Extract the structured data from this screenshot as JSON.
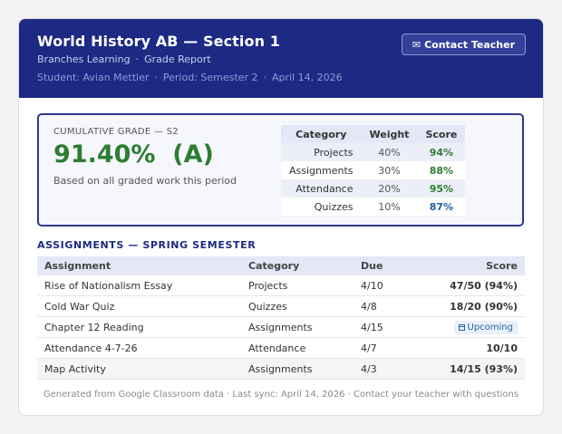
{
  "header": {
    "title": "World History AB — Section 1",
    "school": "Branches Learning",
    "report": "Grade Report",
    "student": "Student: Avian Mettler",
    "period": "Period: Semester 2",
    "date": "April 14, 2026",
    "contact_icon": "envelope-icon",
    "contact_label": "Contact Teacher"
  },
  "cumulative": {
    "label": "CUMULATIVE GRADE — S2",
    "value": "91.40%  (A)",
    "note": "Based on all graded work this period"
  },
  "weights": {
    "headers": [
      "Category",
      "Weight",
      "Score"
    ],
    "rows": [
      {
        "category": "Projects",
        "weight": "40%",
        "score": "94%",
        "color": "#2e7d32"
      },
      {
        "category": "Assignments",
        "weight": "30%",
        "score": "88%",
        "color": "#2e7d32"
      },
      {
        "category": "Attendance",
        "weight": "20%",
        "score": "95%",
        "color": "#2e7d32"
      },
      {
        "category": "Quizzes",
        "weight": "10%",
        "score": "87%",
        "color": "#1e5fa8"
      }
    ]
  },
  "assignments": {
    "title": "ASSIGNMENTS — SPRING SEMESTER",
    "headers": [
      "Assignment",
      "Category",
      "Due",
      "Score"
    ],
    "rows": [
      {
        "name": "Rise of Nationalism Essay",
        "category": "Projects",
        "due": "4/10",
        "score": "47/50 (94%)"
      },
      {
        "name": "Cold War Quiz",
        "category": "Quizzes",
        "due": "4/8",
        "score": "18/20 (90%)"
      },
      {
        "name": "Chapter 12 Reading",
        "category": "Assignments",
        "due": "4/15",
        "score": "Upcoming",
        "status_icon": "calendar-icon"
      },
      {
        "name": "Attendance 4-7-26",
        "category": "Attendance",
        "due": "4/7",
        "score": "10/10"
      },
      {
        "name": "Map Activity",
        "category": "Assignments",
        "due": "4/3",
        "score": "14/15 (93%)"
      }
    ]
  },
  "footer": "Generated from Google Classroom data · Last sync: April 14, 2026 · Contact your teacher with questions",
  "colors": {
    "header_bg": "#1c2a84",
    "grade_green": "#2e7d32",
    "score_blue": "#1e5fa8"
  }
}
